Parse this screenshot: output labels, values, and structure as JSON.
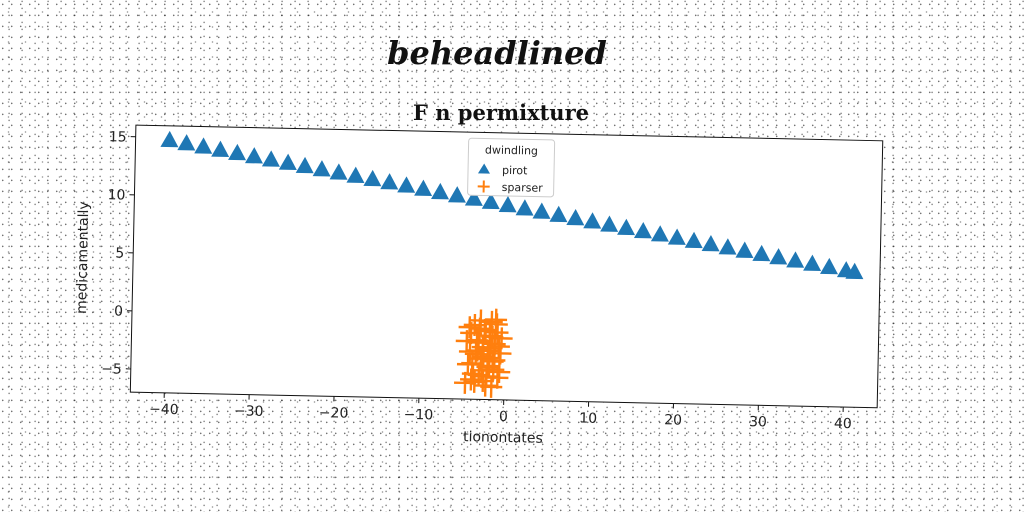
{
  "chart_data": {
    "type": "scatter",
    "suptitle": "beheadlined",
    "title": "F n permixture",
    "xlabel": "tionontates",
    "ylabel": "medicamentally",
    "xlim": [
      -44,
      44
    ],
    "ylim": [
      -7,
      16
    ],
    "xticks": [
      -40,
      -30,
      -20,
      -10,
      0,
      10,
      20,
      30,
      40
    ],
    "yticks": [
      -5,
      0,
      5,
      10,
      15
    ],
    "xtick_labels": [
      "−40",
      "−30",
      "−20",
      "−10",
      "0",
      "10",
      "20",
      "30",
      "40"
    ],
    "ytick_labels": [
      "−5",
      "0",
      "5",
      "10",
      "15"
    ],
    "grid": false,
    "legend": {
      "title": "dwindling",
      "placement": "upper center"
    },
    "series": [
      {
        "name": "pirot",
        "marker": "triangle",
        "color": "#1f77b4",
        "x": [
          -40,
          -38,
          -36,
          -34,
          -32,
          -30,
          -28,
          -26,
          -24,
          -22,
          -20,
          -18,
          -16,
          -14,
          -12,
          -10,
          -8,
          -6,
          -4,
          -2,
          0,
          2,
          4,
          6,
          8,
          10,
          12,
          14,
          16,
          18,
          20,
          22,
          24,
          26,
          28,
          30,
          32,
          34,
          36,
          38,
          40,
          41
        ],
        "y": [
          14.8,
          14.55,
          14.3,
          14.05,
          13.8,
          13.55,
          13.3,
          13.05,
          12.8,
          12.55,
          12.3,
          12.05,
          11.8,
          11.55,
          11.3,
          11.05,
          10.8,
          10.55,
          10.3,
          10.05,
          9.8,
          9.55,
          9.3,
          9.05,
          8.8,
          8.55,
          8.3,
          8.05,
          7.8,
          7.55,
          7.3,
          7.05,
          6.8,
          6.55,
          6.3,
          6.05,
          5.8,
          5.55,
          5.3,
          5.05,
          4.8,
          4.67
        ]
      },
      {
        "name": "sparser",
        "marker": "plus",
        "color": "#ff7f0e",
        "x": [
          -4.5,
          -4.0,
          -3.6,
          -3.2,
          -2.8,
          -2.4,
          -2.0,
          -1.6,
          -1.2,
          -0.8,
          -0.4,
          -4.3,
          -3.9,
          -3.4,
          -3.0,
          -2.6,
          -2.2,
          -1.8,
          -1.4,
          -1.0,
          -0.6,
          -4.6,
          -4.1,
          -3.7,
          -3.3,
          -2.9,
          -2.5,
          -2.1,
          -1.7,
          -1.3,
          -0.9,
          -0.5,
          -4.2,
          -3.8,
          -3.5,
          -3.1,
          -2.7,
          -2.3,
          -1.9,
          -1.5,
          -1.1,
          -0.7,
          -2.0,
          -1.8,
          -1.5,
          -1.2,
          -3.0,
          -2.5
        ],
        "y": [
          -2.0,
          -1.3,
          -0.6,
          -2.8,
          -3.5,
          -1.0,
          -4.2,
          -0.3,
          -2.2,
          -5.1,
          -1.7,
          -4.0,
          -5.3,
          -3.1,
          -0.9,
          -2.5,
          -5.8,
          -1.5,
          -3.7,
          -0.5,
          -4.6,
          -5.6,
          -2.9,
          -4.8,
          -1.9,
          -0.2,
          -3.3,
          -5.0,
          -2.6,
          -4.4,
          -1.2,
          -3.0,
          -0.8,
          -3.9,
          -5.5,
          -2.1,
          -4.5,
          -1.1,
          -3.4,
          -5.9,
          -0.1,
          -2.4,
          -2.8,
          -4.1,
          -1.6,
          -3.6,
          -4.9,
          -5.4
        ]
      }
    ]
  }
}
